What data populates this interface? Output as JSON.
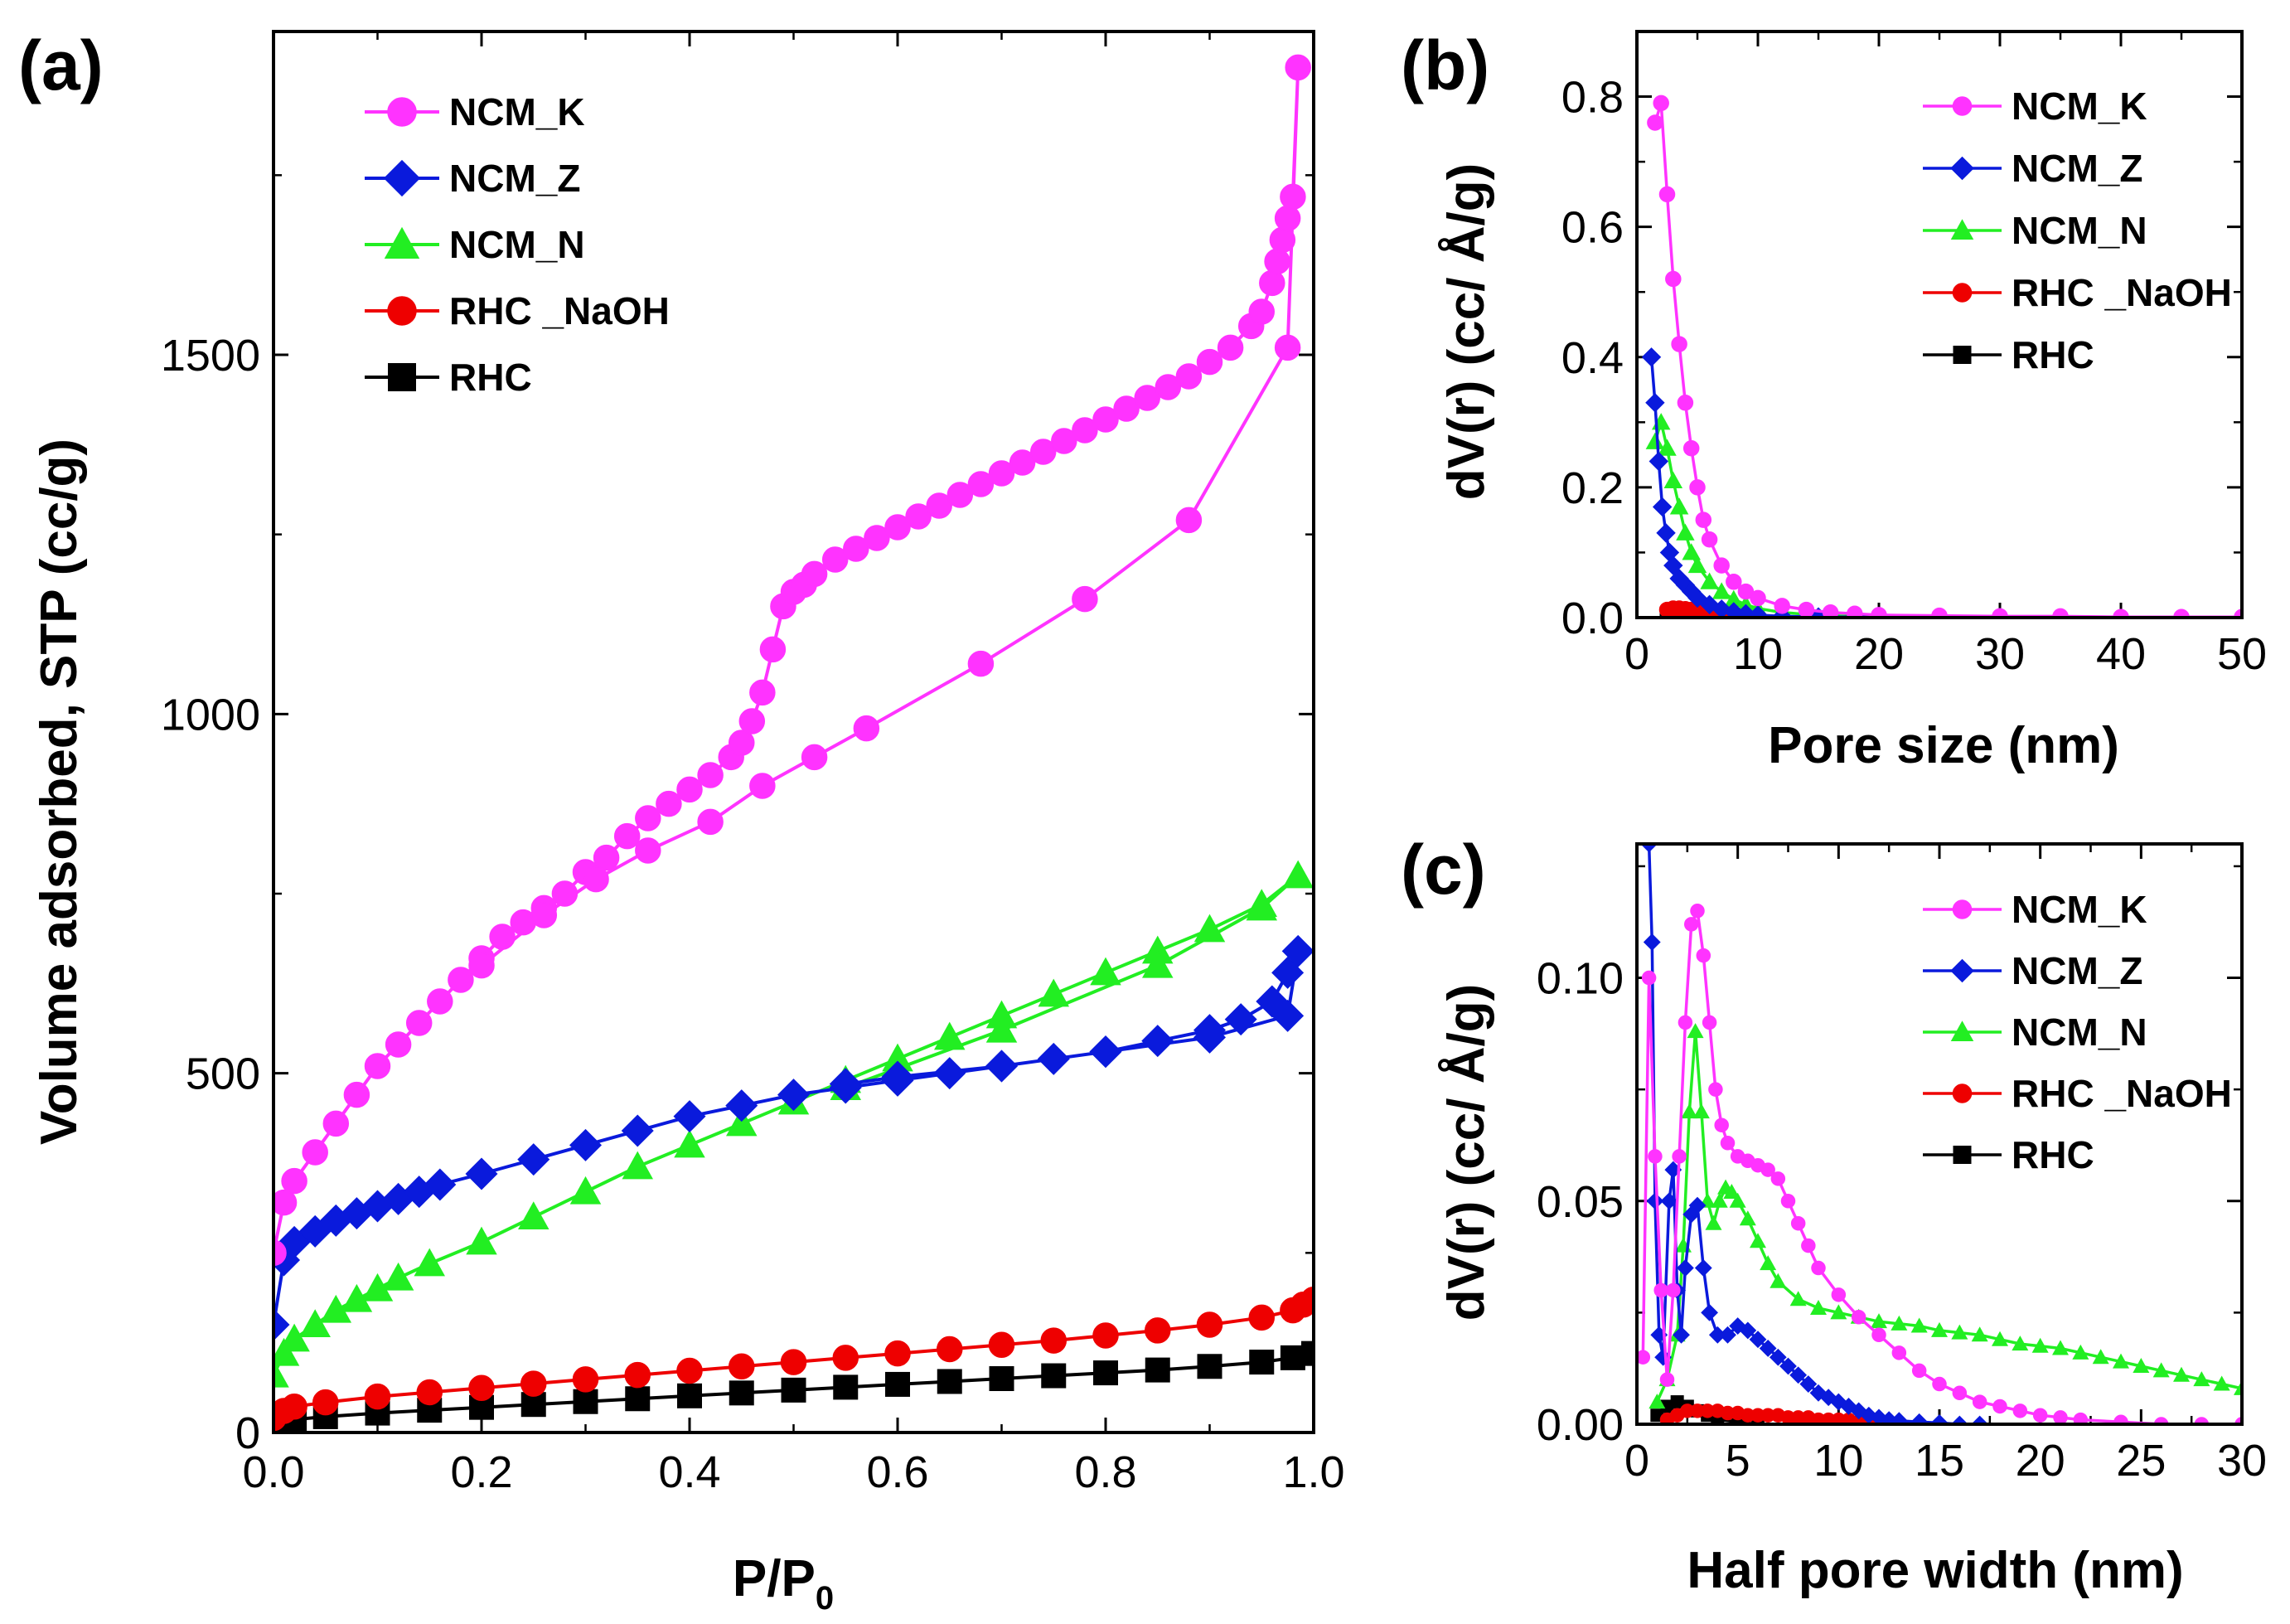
{
  "chart_data": [
    {
      "panel": "(a)",
      "type": "line",
      "xlabel": "P/P",
      "xlabel_sub": "0",
      "ylabel": "Volume adsorbed, STP (cc/g)",
      "xlim": [
        0,
        1
      ],
      "ylim": [
        0,
        1950
      ],
      "xticks": [
        0.0,
        0.2,
        0.4,
        0.6,
        0.8,
        1.0
      ],
      "xtick_labels": [
        "0.0",
        "0.2",
        "0.4",
        "0.6",
        "0.8",
        "1.0"
      ],
      "yticks": [
        0,
        500,
        1000,
        1500
      ],
      "ytick_labels": [
        "0",
        "500",
        "1000",
        "1500"
      ],
      "legend_position": "top-left",
      "legend": [
        "NCM_K",
        "NCM_Z",
        "NCM_N",
        "RHC _NaOH",
        "RHC"
      ],
      "series": [
        {
          "name": "NCM_K",
          "color": "#ff33ff",
          "marker": "circle",
          "x": [
            0.0,
            0.01,
            0.02,
            0.04,
            0.06,
            0.08,
            0.1,
            0.12,
            0.14,
            0.16,
            0.18,
            0.2,
            0.22,
            0.24,
            0.26,
            0.28,
            0.3,
            0.32,
            0.34,
            0.36,
            0.38,
            0.4,
            0.42,
            0.44,
            0.45,
            0.46,
            0.47,
            0.48,
            0.49,
            0.5,
            0.51,
            0.52,
            0.54,
            0.56,
            0.58,
            0.6,
            0.62,
            0.64,
            0.66,
            0.68,
            0.7,
            0.72,
            0.74,
            0.76,
            0.78,
            0.8,
            0.82,
            0.84,
            0.86,
            0.88,
            0.9,
            0.92,
            0.94,
            0.95,
            0.96,
            0.965,
            0.97,
            0.975,
            0.98,
            0.985,
            0.975,
            0.88,
            0.78,
            0.68,
            0.57,
            0.52,
            0.47,
            0.42,
            0.36,
            0.31,
            0.26,
            0.2
          ],
          "y": [
            250,
            320,
            350,
            390,
            430,
            470,
            510,
            540,
            570,
            600,
            630,
            660,
            690,
            710,
            730,
            750,
            780,
            800,
            830,
            855,
            875,
            895,
            915,
            940,
            960,
            990,
            1030,
            1090,
            1150,
            1170,
            1180,
            1195,
            1215,
            1230,
            1245,
            1260,
            1275,
            1290,
            1305,
            1320,
            1335,
            1350,
            1365,
            1380,
            1395,
            1410,
            1425,
            1440,
            1455,
            1470,
            1490,
            1510,
            1540,
            1560,
            1600,
            1630,
            1660,
            1690,
            1720,
            1900,
            1510,
            1270,
            1160,
            1070,
            980,
            940,
            900,
            850,
            810,
            770,
            720,
            650
          ]
        },
        {
          "name": "NCM_Z",
          "color": "#0a1adc",
          "marker": "diamond",
          "x": [
            0.0,
            0.01,
            0.02,
            0.04,
            0.06,
            0.08,
            0.1,
            0.12,
            0.14,
            0.16,
            0.2,
            0.25,
            0.3,
            0.35,
            0.4,
            0.45,
            0.5,
            0.55,
            0.6,
            0.65,
            0.7,
            0.75,
            0.8,
            0.85,
            0.9,
            0.93,
            0.96,
            0.975,
            0.985,
            0.975,
            0.9,
            0.8,
            0.7,
            0.6,
            0.55
          ],
          "y": [
            150,
            240,
            265,
            280,
            295,
            305,
            315,
            325,
            335,
            345,
            360,
            380,
            400,
            420,
            440,
            455,
            470,
            480,
            490,
            500,
            510,
            520,
            530,
            545,
            560,
            575,
            600,
            640,
            670,
            580,
            550,
            530,
            510,
            495,
            485
          ]
        },
        {
          "name": "NCM_N",
          "color": "#22ee22",
          "marker": "triangle",
          "x": [
            0.0,
            0.01,
            0.02,
            0.04,
            0.06,
            0.08,
            0.1,
            0.12,
            0.15,
            0.2,
            0.25,
            0.3,
            0.35,
            0.4,
            0.45,
            0.5,
            0.55,
            0.6,
            0.65,
            0.7,
            0.75,
            0.8,
            0.85,
            0.9,
            0.95,
            0.985,
            0.95,
            0.85,
            0.7,
            0.55
          ],
          "y": [
            80,
            110,
            130,
            150,
            170,
            185,
            200,
            215,
            235,
            265,
            300,
            335,
            370,
            400,
            430,
            460,
            490,
            520,
            550,
            580,
            610,
            640,
            670,
            700,
            735,
            775,
            730,
            650,
            560,
            480
          ]
        },
        {
          "name": "RHC _NaOH",
          "color": "#ee0000",
          "marker": "circle",
          "x": [
            0.0,
            0.01,
            0.02,
            0.05,
            0.1,
            0.15,
            0.2,
            0.25,
            0.3,
            0.35,
            0.4,
            0.45,
            0.5,
            0.55,
            0.6,
            0.65,
            0.7,
            0.75,
            0.8,
            0.85,
            0.9,
            0.95,
            0.98,
            0.99,
            1.0
          ],
          "y": [
            20,
            30,
            36,
            42,
            50,
            56,
            62,
            68,
            74,
            80,
            86,
            92,
            98,
            104,
            110,
            116,
            122,
            128,
            135,
            142,
            150,
            160,
            170,
            178,
            185
          ]
        },
        {
          "name": "RHC",
          "color": "#000000",
          "marker": "square",
          "x": [
            0.0,
            0.01,
            0.02,
            0.05,
            0.1,
            0.15,
            0.2,
            0.25,
            0.3,
            0.35,
            0.4,
            0.45,
            0.5,
            0.55,
            0.6,
            0.65,
            0.7,
            0.75,
            0.8,
            0.85,
            0.9,
            0.95,
            0.98,
            1.0
          ],
          "y": [
            10,
            15,
            18,
            22,
            27,
            31,
            35,
            39,
            43,
            47,
            51,
            55,
            59,
            63,
            67,
            71,
            75,
            79,
            83,
            87,
            92,
            98,
            104,
            110
          ]
        }
      ]
    },
    {
      "panel": "(b)",
      "type": "line",
      "xlabel": "Pore size (nm)",
      "ylabel": "dV(r)  (cc/ Å/g)",
      "xlim": [
        0,
        50
      ],
      "ylim": [
        0,
        0.9
      ],
      "xticks": [
        0,
        10,
        20,
        30,
        40,
        50
      ],
      "xtick_labels": [
        "0",
        "10",
        "20",
        "30",
        "40",
        "50"
      ],
      "yticks": [
        0,
        0.2,
        0.4,
        0.6,
        0.8
      ],
      "ytick_labels": [
        "0.0",
        "0.2",
        "0.4",
        "0.6",
        "0.8"
      ],
      "legend_position": "top-right",
      "legend": [
        "NCM_K",
        "NCM_Z",
        "NCM_N",
        "RHC _NaOH",
        "RHC"
      ],
      "series": [
        {
          "name": "NCM_K",
          "color": "#ff33ff",
          "marker": "circle",
          "x": [
            1.5,
            2,
            2.5,
            3,
            3.5,
            4,
            4.5,
            5,
            5.5,
            6,
            7,
            8,
            9,
            10,
            12,
            14,
            16,
            18,
            20,
            25,
            30,
            35,
            40,
            45,
            50
          ],
          "y": [
            0.76,
            0.79,
            0.65,
            0.52,
            0.42,
            0.33,
            0.26,
            0.2,
            0.15,
            0.12,
            0.08,
            0.055,
            0.04,
            0.03,
            0.018,
            0.012,
            0.008,
            0.006,
            0.004,
            0.003,
            0.002,
            0.002,
            0.001,
            0.001,
            0.001
          ]
        },
        {
          "name": "NCM_Z",
          "color": "#0a1adc",
          "marker": "diamond",
          "x": [
            1.2,
            1.5,
            1.8,
            2.1,
            2.4,
            2.7,
            3,
            3.5,
            4,
            4.5,
            5,
            6,
            7,
            8,
            9,
            10,
            12,
            15,
            20,
            25,
            30
          ],
          "y": [
            0.4,
            0.33,
            0.24,
            0.17,
            0.13,
            0.1,
            0.08,
            0.06,
            0.05,
            0.04,
            0.03,
            0.02,
            0.013,
            0.009,
            0.006,
            0.004,
            0.002,
            0.001,
            0.001,
            0.0,
            0.0
          ]
        },
        {
          "name": "NCM_N",
          "color": "#22ee22",
          "marker": "triangle",
          "x": [
            1.5,
            2,
            2.5,
            3,
            3.5,
            4,
            4.5,
            5,
            6,
            7,
            8,
            9,
            10,
            12,
            14,
            16,
            18,
            20,
            25,
            30
          ],
          "y": [
            0.27,
            0.3,
            0.26,
            0.21,
            0.17,
            0.13,
            0.1,
            0.08,
            0.055,
            0.04,
            0.028,
            0.02,
            0.014,
            0.008,
            0.005,
            0.003,
            0.002,
            0.001,
            0.0,
            0.0
          ]
        },
        {
          "name": "RHC _NaOH",
          "color": "#ee0000",
          "marker": "circle",
          "x": [
            2.5,
            3,
            3.5,
            4,
            4.5,
            5,
            5.5,
            6,
            7,
            8,
            9,
            10
          ],
          "y": [
            0.012,
            0.014,
            0.014,
            0.013,
            0.012,
            0.011,
            0.01,
            0.008,
            0.006,
            0.004,
            0.002,
            0.001
          ]
        },
        {
          "name": "RHC",
          "color": "#000000",
          "marker": "square",
          "x": [
            2.5,
            3,
            3.5,
            4,
            5,
            6,
            7,
            8
          ],
          "y": [
            0.005,
            0.006,
            0.006,
            0.005,
            0.004,
            0.003,
            0.002,
            0.001
          ]
        }
      ]
    },
    {
      "panel": "(c)",
      "type": "line",
      "xlabel": "Half pore width (nm)",
      "ylabel": "dV(r)  (cc/ Å/g)",
      "xlim": [
        0,
        30
      ],
      "ylim": [
        0,
        0.13
      ],
      "xticks": [
        0,
        5,
        10,
        15,
        20,
        25,
        30
      ],
      "xtick_labels": [
        "0",
        "5",
        "10",
        "15",
        "20",
        "25",
        "30"
      ],
      "yticks": [
        0,
        0.05,
        0.1
      ],
      "ytick_labels": [
        "0.00",
        "0.05",
        "0.10"
      ],
      "legend_position": "top-right",
      "legend": [
        "NCM_K",
        "NCM_Z",
        "NCM_N",
        "RHC _NaOH",
        "RHC"
      ],
      "series": [
        {
          "name": "NCM_K",
          "color": "#ff33ff",
          "marker": "circle",
          "x": [
            0.3,
            0.6,
            0.9,
            1.2,
            1.5,
            1.8,
            2.1,
            2.4,
            2.7,
            3.0,
            3.3,
            3.6,
            3.9,
            4.2,
            4.5,
            5.0,
            5.5,
            6.0,
            6.5,
            7.0,
            7.5,
            8.0,
            8.5,
            9.0,
            10,
            11,
            12,
            13,
            14,
            15,
            16,
            17,
            18,
            19,
            20,
            21,
            22,
            24,
            26,
            28,
            30
          ],
          "y": [
            0.015,
            0.1,
            0.06,
            0.03,
            0.01,
            0.03,
            0.06,
            0.09,
            0.112,
            0.115,
            0.105,
            0.09,
            0.075,
            0.067,
            0.063,
            0.06,
            0.059,
            0.058,
            0.057,
            0.055,
            0.05,
            0.045,
            0.04,
            0.035,
            0.029,
            0.024,
            0.02,
            0.016,
            0.012,
            0.009,
            0.007,
            0.005,
            0.004,
            0.003,
            0.002,
            0.0015,
            0.001,
            0.0005,
            0.0,
            0.0,
            0.0
          ]
        },
        {
          "name": "NCM_Z",
          "color": "#0a1adc",
          "marker": "diamond",
          "x": [
            0.6,
            0.75,
            0.9,
            1.1,
            1.3,
            1.6,
            1.8,
            2.0,
            2.2,
            2.4,
            2.7,
            3.0,
            3.3,
            3.6,
            4.0,
            4.5,
            5.0,
            5.5,
            6.0,
            6.5,
            7.0,
            7.5,
            8.0,
            8.5,
            9.0,
            9.5,
            10,
            10.5,
            11,
            11.5,
            12,
            12.5,
            13,
            14,
            15,
            16,
            17
          ],
          "y": [
            0.13,
            0.108,
            0.05,
            0.02,
            0.015,
            0.05,
            0.057,
            0.03,
            0.02,
            0.035,
            0.047,
            0.049,
            0.035,
            0.025,
            0.02,
            0.02,
            0.022,
            0.021,
            0.019,
            0.017,
            0.015,
            0.013,
            0.011,
            0.009,
            0.007,
            0.006,
            0.005,
            0.004,
            0.003,
            0.002,
            0.0015,
            0.001,
            0.0008,
            0.0005,
            0.0003,
            0.0,
            0.0
          ]
        },
        {
          "name": "NCM_N",
          "color": "#22ee22",
          "marker": "triangle",
          "x": [
            1.0,
            1.5,
            2.0,
            2.3,
            2.6,
            2.9,
            3.2,
            3.5,
            3.8,
            4.1,
            4.4,
            4.7,
            5.0,
            5.5,
            6.0,
            6.5,
            7.0,
            8.0,
            9.0,
            10,
            11,
            12,
            13,
            14,
            15,
            16,
            17,
            18,
            19,
            20,
            21,
            22,
            23,
            24,
            25,
            26,
            27,
            28,
            29,
            30
          ],
          "y": [
            0.005,
            0.01,
            0.02,
            0.04,
            0.07,
            0.088,
            0.07,
            0.05,
            0.045,
            0.05,
            0.053,
            0.052,
            0.05,
            0.046,
            0.041,
            0.036,
            0.032,
            0.028,
            0.026,
            0.025,
            0.024,
            0.023,
            0.0225,
            0.022,
            0.021,
            0.0205,
            0.02,
            0.019,
            0.018,
            0.0175,
            0.017,
            0.016,
            0.015,
            0.014,
            0.013,
            0.012,
            0.011,
            0.01,
            0.009,
            0.008
          ]
        },
        {
          "name": "RHC _NaOH",
          "color": "#ee0000",
          "marker": "circle",
          "x": [
            1.5,
            2,
            2.5,
            3,
            3.5,
            4,
            4.5,
            5,
            5.5,
            6,
            6.5,
            7,
            7.5,
            8,
            8.5,
            9,
            9.5,
            10,
            10.5,
            11,
            11.5,
            12
          ],
          "y": [
            0.001,
            0.002,
            0.003,
            0.003,
            0.003,
            0.003,
            0.0025,
            0.0025,
            0.002,
            0.002,
            0.002,
            0.002,
            0.0015,
            0.0015,
            0.0015,
            0.001,
            0.001,
            0.001,
            0.001,
            0.0005,
            0.0005,
            0.0
          ]
        },
        {
          "name": "RHC",
          "color": "#000000",
          "marker": "square",
          "x": [
            1.0,
            1.5,
            2.0,
            2.5,
            3.0,
            3.5,
            4.0,
            5.0,
            6.0
          ],
          "y": [
            0.002,
            0.004,
            0.005,
            0.004,
            0.003,
            0.002,
            0.001,
            0.0005,
            0.0
          ]
        }
      ]
    }
  ]
}
